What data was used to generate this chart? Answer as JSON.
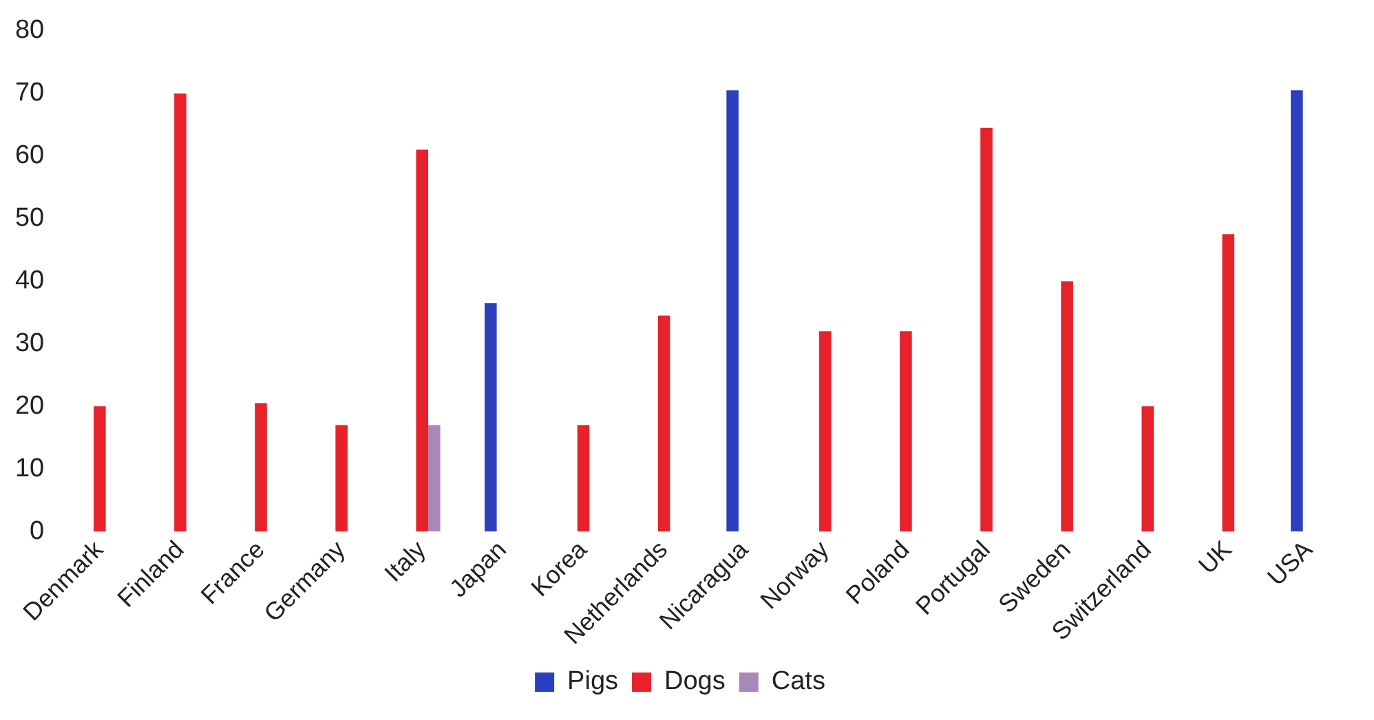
{
  "chart_data": {
    "type": "bar",
    "categories": [
      "Denmark",
      "Finland",
      "France",
      "Germany",
      "Italy",
      "Japan",
      "Korea",
      "Netherlands",
      "Nicaragua",
      "Norway",
      "Poland",
      "Portugal",
      "Sweden",
      "Switzerland",
      "UK",
      "USA"
    ],
    "series": [
      {
        "name": "Pigs",
        "color": "#2b3fc0",
        "values": [
          null,
          null,
          null,
          null,
          null,
          36.5,
          null,
          null,
          70.5,
          null,
          null,
          null,
          null,
          null,
          null,
          70.5
        ]
      },
      {
        "name": "Dogs",
        "color": "#e8222a",
        "values": [
          20,
          70,
          20.5,
          17,
          61,
          null,
          17,
          34.5,
          null,
          32,
          32,
          64.5,
          40,
          20,
          47.5,
          null
        ]
      },
      {
        "name": "Cats",
        "color": "#a888b8",
        "values": [
          null,
          null,
          null,
          null,
          17,
          null,
          null,
          null,
          null,
          null,
          null,
          null,
          null,
          null,
          null,
          null
        ]
      }
    ],
    "ylim": [
      0,
      80
    ],
    "yticks": [
      0,
      10,
      20,
      30,
      40,
      50,
      60,
      70,
      80
    ],
    "grid": false,
    "legend": "bottom"
  }
}
